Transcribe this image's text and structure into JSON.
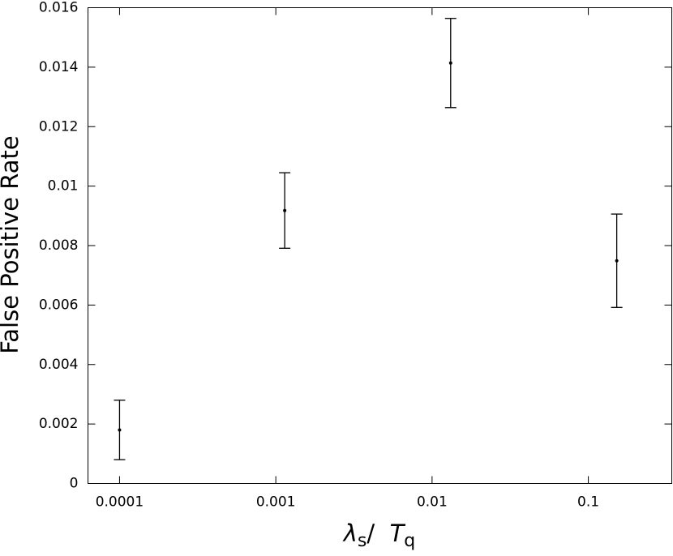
{
  "chart_data": {
    "type": "errorbar",
    "ylabel": "False Positive Rate",
    "xlabel_parts": [
      "λ",
      "s",
      "/  ",
      "T",
      "q"
    ],
    "x": [
      0.0001,
      0.00114,
      0.01315,
      0.152
    ],
    "values": [
      0.0018,
      0.00918,
      0.01414,
      0.00749
    ],
    "errors": [
      0.001,
      0.00127,
      0.0015,
      0.00157
    ],
    "color": "#000000",
    "xscale": "log",
    "xlim": [
      6.28e-05,
      0.342
    ],
    "xticks": [
      0.0001,
      0.001,
      0.01,
      0.1
    ],
    "ylim": [
      0,
      0.016
    ],
    "yticks": [
      0,
      0.002,
      0.004,
      0.006,
      0.008,
      0.01,
      0.012,
      0.014,
      0.016
    ],
    "grid": false
  }
}
